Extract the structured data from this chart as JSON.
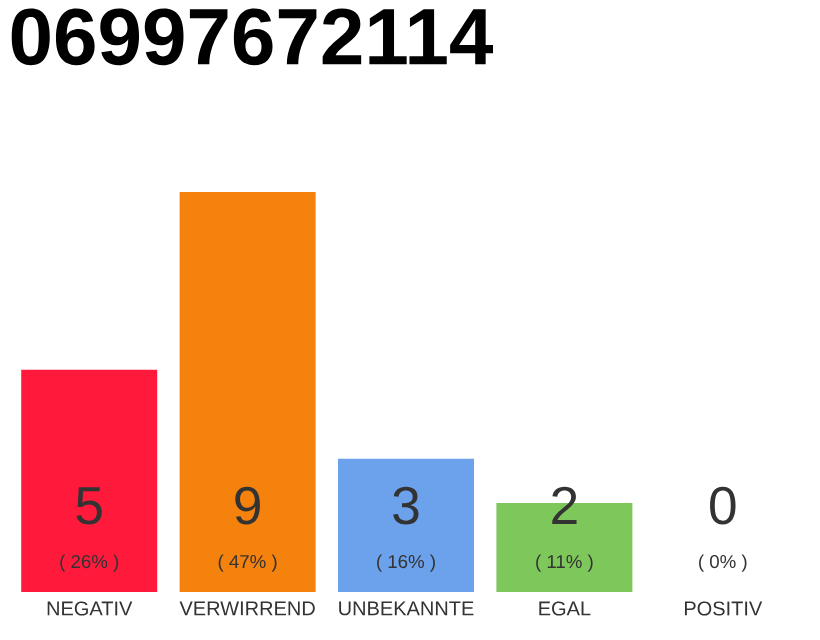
{
  "chart_data": {
    "type": "bar",
    "title": "06997672114",
    "categories": [
      "NEGATIV",
      "VERWIRREND",
      "UNBEKANNTE",
      "EGAL",
      "POSITIV"
    ],
    "values": [
      5,
      9,
      3,
      2,
      0
    ],
    "colors": [
      "#ff1a3c",
      "#f5820d",
      "#6ca1ec",
      "#7ec85b",
      "#cccccc"
    ],
    "value_labels": [
      "5",
      "9",
      "3",
      "2",
      "0"
    ],
    "annotations": [
      "( 26% )",
      "( 47% )",
      "( 16% )",
      "( 11% )",
      "( 0% )"
    ]
  }
}
